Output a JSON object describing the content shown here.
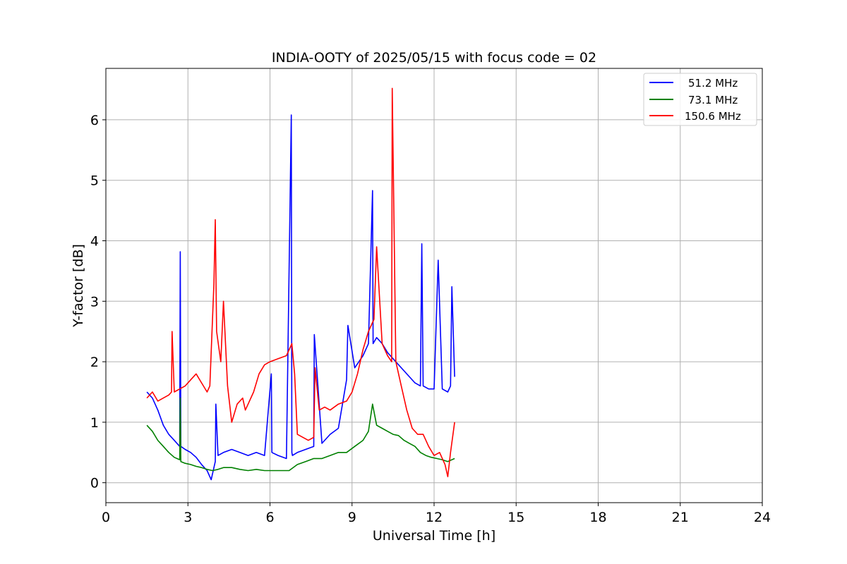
{
  "chart_data": {
    "type": "line",
    "title": "INDIA-OOTY of 2025/05/15 with focus code = 02",
    "xlabel": "Universal Time [h]",
    "ylabel": "Y-factor [dB]",
    "xlim": [
      0,
      24
    ],
    "ylim": [
      -0.33,
      6.85
    ],
    "xticks": [
      0,
      3,
      6,
      9,
      12,
      15,
      18,
      21,
      24
    ],
    "yticks": [
      0,
      1,
      2,
      3,
      4,
      5,
      6
    ],
    "grid": true,
    "legend_position": "upper right",
    "series": [
      {
        "name": "51.2 MHz",
        "color": "#0000ff",
        "x": [
          1.5,
          1.7,
          1.9,
          2.1,
          2.3,
          2.5,
          2.7,
          2.72,
          2.74,
          2.9,
          3.1,
          3.3,
          3.5,
          3.7,
          3.85,
          4.0,
          4.02,
          4.1,
          4.3,
          4.6,
          4.9,
          5.2,
          5.5,
          5.8,
          6.05,
          6.07,
          6.3,
          6.6,
          6.78,
          6.8,
          6.82,
          7.0,
          7.3,
          7.6,
          7.62,
          7.9,
          8.2,
          8.5,
          8.8,
          8.85,
          9.1,
          9.4,
          9.6,
          9.75,
          9.77,
          9.9,
          10.1,
          10.3,
          10.5,
          10.7,
          10.9,
          11.1,
          11.3,
          11.5,
          11.55,
          11.6,
          11.8,
          12.0,
          12.15,
          12.3,
          12.5,
          12.6,
          12.65,
          12.75
        ],
        "y": [
          1.5,
          1.4,
          1.2,
          0.95,
          0.8,
          0.7,
          0.6,
          3.82,
          0.6,
          0.55,
          0.5,
          0.42,
          0.3,
          0.2,
          0.05,
          0.35,
          1.3,
          0.45,
          0.5,
          0.55,
          0.5,
          0.45,
          0.5,
          0.45,
          1.8,
          0.5,
          0.45,
          0.4,
          6.08,
          0.5,
          0.45,
          0.5,
          0.55,
          0.6,
          2.45,
          0.65,
          0.8,
          0.9,
          1.7,
          2.6,
          1.9,
          2.1,
          2.3,
          4.83,
          2.3,
          2.4,
          2.3,
          2.15,
          2.05,
          1.95,
          1.85,
          1.75,
          1.65,
          1.6,
          3.95,
          1.6,
          1.55,
          1.55,
          3.68,
          1.55,
          1.5,
          1.6,
          3.24,
          1.75
        ]
      },
      {
        "name": "73.1 MHz",
        "color": "#008000",
        "x": [
          1.5,
          1.7,
          1.9,
          2.1,
          2.3,
          2.5,
          2.7,
          2.72,
          2.74,
          2.9,
          3.1,
          3.3,
          3.5,
          3.7,
          3.9,
          4.1,
          4.3,
          4.6,
          4.9,
          5.2,
          5.5,
          5.8,
          6.1,
          6.4,
          6.7,
          7.0,
          7.3,
          7.6,
          7.9,
          8.2,
          8.5,
          8.8,
          9.1,
          9.4,
          9.6,
          9.75,
          9.9,
          10.1,
          10.3,
          10.5,
          10.7,
          10.9,
          11.1,
          11.3,
          11.5,
          11.7,
          11.9,
          12.1,
          12.3,
          12.5,
          12.75
        ],
        "y": [
          0.95,
          0.85,
          0.7,
          0.6,
          0.5,
          0.42,
          0.38,
          1.4,
          0.35,
          0.32,
          0.3,
          0.27,
          0.25,
          0.22,
          0.2,
          0.22,
          0.25,
          0.25,
          0.22,
          0.2,
          0.22,
          0.2,
          0.2,
          0.2,
          0.2,
          0.3,
          0.35,
          0.4,
          0.4,
          0.45,
          0.5,
          0.5,
          0.6,
          0.7,
          0.85,
          1.3,
          0.95,
          0.9,
          0.85,
          0.8,
          0.78,
          0.7,
          0.65,
          0.6,
          0.5,
          0.45,
          0.42,
          0.4,
          0.38,
          0.35,
          0.4
        ]
      },
      {
        "name": "150.6 MHz",
        "color": "#ff0000",
        "x": [
          1.5,
          1.7,
          1.9,
          2.1,
          2.3,
          2.4,
          2.42,
          2.5,
          2.7,
          2.9,
          3.1,
          3.3,
          3.5,
          3.7,
          3.8,
          3.95,
          4.0,
          4.05,
          4.2,
          4.3,
          4.45,
          4.6,
          4.8,
          5.0,
          5.1,
          5.2,
          5.4,
          5.6,
          5.8,
          6.0,
          6.3,
          6.6,
          6.8,
          6.9,
          7.0,
          7.2,
          7.4,
          7.6,
          7.65,
          7.8,
          8.0,
          8.2,
          8.5,
          8.8,
          9.0,
          9.2,
          9.4,
          9.6,
          9.8,
          9.9,
          10.1,
          10.3,
          10.45,
          10.47,
          10.6,
          10.8,
          11.0,
          11.2,
          11.4,
          11.6,
          11.8,
          12.0,
          12.2,
          12.4,
          12.5,
          12.6,
          12.75
        ],
        "y": [
          1.4,
          1.5,
          1.35,
          1.4,
          1.45,
          1.5,
          2.5,
          1.5,
          1.55,
          1.6,
          1.7,
          1.8,
          1.65,
          1.5,
          1.6,
          3.3,
          4.35,
          2.5,
          2.0,
          3.0,
          1.6,
          1.0,
          1.3,
          1.4,
          1.2,
          1.3,
          1.5,
          1.8,
          1.95,
          2.0,
          2.05,
          2.1,
          2.3,
          1.8,
          0.8,
          0.75,
          0.7,
          0.75,
          1.9,
          1.2,
          1.25,
          1.2,
          1.3,
          1.35,
          1.5,
          1.8,
          2.2,
          2.5,
          2.7,
          3.9,
          2.3,
          2.1,
          2.0,
          6.52,
          2.0,
          1.6,
          1.2,
          0.9,
          0.8,
          0.8,
          0.6,
          0.45,
          0.5,
          0.3,
          0.1,
          0.5,
          1.0
        ]
      }
    ]
  }
}
